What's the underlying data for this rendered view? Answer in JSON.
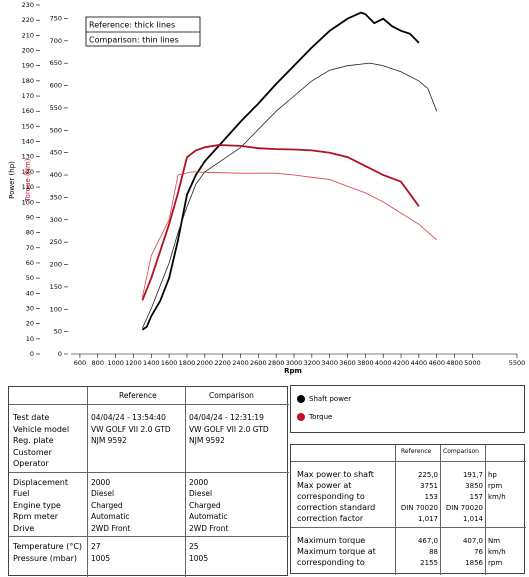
{
  "chart_data": {
    "type": "line",
    "notes": [
      "Reference: thick lines",
      "Comparison: thin lines"
    ],
    "x_label": "Rpm",
    "y_label": "Power (hp)",
    "y2_label": "Torque (Nm)",
    "xlim": [
      500,
      5500
    ],
    "xticks": [
      600,
      800,
      1000,
      1200,
      1400,
      1600,
      1800,
      2000,
      2200,
      2400,
      2600,
      2800,
      3000,
      3200,
      3400,
      3600,
      3800,
      4000,
      4200,
      4400,
      4600,
      4800,
      5000,
      5500
    ],
    "ylim": [
      0,
      230
    ],
    "yticks": [
      0,
      10,
      20,
      30,
      40,
      50,
      60,
      70,
      80,
      90,
      100,
      110,
      120,
      130,
      140,
      150,
      160,
      170,
      180,
      190,
      200,
      210,
      220,
      230
    ],
    "y2lim": [
      0,
      780
    ],
    "y2ticks": [
      0,
      50,
      100,
      150,
      200,
      250,
      300,
      350,
      400,
      450,
      500,
      550,
      600,
      650,
      700,
      750
    ],
    "y2_color": "#c8102e",
    "legend": [
      {
        "label": "Shaft power",
        "color": "#000000"
      },
      {
        "label": "Torque",
        "color": "#c8102e"
      }
    ],
    "series": [
      {
        "legend": 0,
        "note": 0,
        "color": "#000000",
        "width": 1.8,
        "x": [
          1300,
          1350,
          1400,
          1500,
          1600,
          1700,
          1800,
          1900,
          2000,
          2200,
          2400,
          2600,
          2800,
          3000,
          3200,
          3400,
          3600,
          3751,
          3800,
          3900,
          4000,
          4100,
          4200,
          4300,
          4400
        ],
        "values": [
          16,
          18,
          25,
          35,
          50,
          75,
          105,
          118,
          127,
          140,
          153,
          165,
          178,
          190,
          202,
          213,
          221,
          225,
          224,
          218,
          221,
          216,
          213,
          211,
          205
        ]
      },
      {
        "legend": 0,
        "note": 1,
        "color": "#222222",
        "width": 0.8,
        "x": [
          1300,
          1400,
          1500,
          1600,
          1700,
          1800,
          1900,
          2000,
          2200,
          2400,
          2600,
          2800,
          3000,
          3200,
          3400,
          3600,
          3850,
          4000,
          4200,
          4400,
          4500,
          4600
        ],
        "values": [
          17,
          30,
          45,
          60,
          80,
          97,
          112,
          120,
          128,
          136,
          148,
          160,
          170,
          180,
          187,
          190,
          191.7,
          190,
          186,
          180,
          175,
          160
        ]
      },
      {
        "legend": 1,
        "note": 0,
        "color": "#b01020",
        "width": 1.8,
        "axis": "y2",
        "x": [
          1300,
          1400,
          1500,
          1600,
          1700,
          1800,
          1900,
          2000,
          2155,
          2400,
          2600,
          2800,
          3000,
          3200,
          3400,
          3600,
          3800,
          4000,
          4200,
          4400
        ],
        "values": [
          120,
          170,
          230,
          290,
          360,
          440,
          455,
          462,
          467,
          465,
          460,
          458,
          457,
          455,
          450,
          440,
          420,
          400,
          385,
          330
        ]
      },
      {
        "legend": 1,
        "note": 1,
        "color": "#e03a4a",
        "width": 0.8,
        "axis": "y2",
        "x": [
          1300,
          1400,
          1500,
          1600,
          1700,
          1856,
          2000,
          2400,
          2800,
          3000,
          3200,
          3400,
          3600,
          3800,
          4000,
          4200,
          4400,
          4600
        ],
        "values": [
          127,
          220,
          260,
          300,
          400,
          407,
          406,
          404,
          404,
          400,
          395,
          390,
          375,
          360,
          340,
          315,
          290,
          255
        ]
      }
    ]
  },
  "report": {
    "columns": [
      "Reference",
      "Comparison"
    ],
    "groups": [
      [
        [
          "Test date",
          "04/04/24 - 13:54:40",
          "04/04/24 - 12:31:19"
        ],
        [
          "Vehicle model",
          "VW GOLF VII 2.0 GTD",
          "VW GOLF VII 2.0 GTD"
        ],
        [
          "Reg. plate",
          "NJM 9592",
          "NJM 9592"
        ],
        [
          "Customer",
          null,
          null
        ],
        [
          "Operator",
          null,
          null
        ]
      ],
      [
        [
          "Displacement",
          2000,
          2000
        ],
        [
          "Fuel",
          "Diesel",
          "Diesel"
        ],
        [
          "Engine type",
          "Charged",
          "Charged"
        ],
        [
          "Rpm meter",
          "Automatic",
          "Automatic"
        ],
        [
          "Drive",
          "2WD Front",
          "2WD Front"
        ]
      ],
      [
        [
          "Temperature (°C)",
          27,
          25
        ],
        [
          "Pressure (mbar)",
          1005,
          1005
        ]
      ]
    ]
  },
  "summary": {
    "columns": [
      "Reference",
      "Comparison"
    ],
    "groups": [
      [
        [
          "Max power to shaft",
          "225,0",
          "191,7",
          "hp"
        ],
        [
          "Max power at",
          3751,
          3850,
          "rpm"
        ],
        [
          "corresponding to",
          153,
          157,
          "km/h"
        ],
        [
          "correction standard",
          "DIN 70020",
          "DIN 70020",
          null
        ],
        [
          "correction factor",
          "1,017",
          "1,014",
          null
        ]
      ],
      [
        [
          "Maximum torque",
          "467,0",
          "407,0",
          "Nm"
        ],
        [
          "Maximum torque at",
          88,
          76,
          "km/h"
        ],
        [
          "corresponding to",
          2155,
          1856,
          "rpm"
        ]
      ]
    ]
  }
}
